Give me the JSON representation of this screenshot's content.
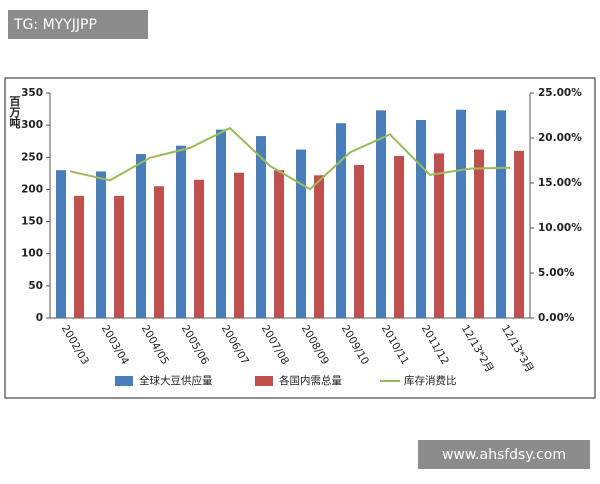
{
  "tag": "TG: MYYJJPP",
  "watermark": "www.ahsfdsy.com",
  "chart_data": {
    "type": "bar-line",
    "y_label": "百万吨",
    "categories": [
      "2002/03",
      "2003/04",
      "2004/05",
      "2005/06",
      "2006/07",
      "2007/08",
      "2008/09",
      "2009/10",
      "2010/11",
      "2011/12",
      "12/13*2月",
      "12/13*3月"
    ],
    "series": [
      {
        "name": "全球大豆供应量",
        "color": "#4a7ebb",
        "kind": "bar",
        "values": [
          230,
          228,
          255,
          268,
          293,
          283,
          262,
          303,
          323,
          308,
          324,
          323
        ]
      },
      {
        "name": "各国内需总量",
        "color": "#c0504d",
        "kind": "bar",
        "values": [
          190,
          190,
          205,
          215,
          226,
          230,
          222,
          238,
          252,
          256,
          262,
          260
        ]
      },
      {
        "name": "库存消费比",
        "color": "#9bbb59",
        "kind": "line",
        "axis": "y2",
        "values": [
          16.3,
          15.3,
          17.8,
          18.9,
          21.1,
          16.9,
          14.3,
          18.4,
          20.4,
          15.9,
          16.6,
          16.7
        ]
      }
    ],
    "ylim": [
      0,
      350
    ],
    "yticks": [
      0,
      50,
      100,
      150,
      200,
      250,
      300,
      350
    ],
    "y2lim": [
      0,
      25
    ],
    "y2ticks": [
      {
        "value": 0,
        "label": "0.00%"
      },
      {
        "value": 5,
        "label": "5.00%"
      },
      {
        "value": 10,
        "label": "10.00%"
      },
      {
        "value": 15,
        "label": "15.00%"
      },
      {
        "value": 20,
        "label": "20.00%"
      },
      {
        "value": 25,
        "label": "25.00%"
      }
    ]
  }
}
